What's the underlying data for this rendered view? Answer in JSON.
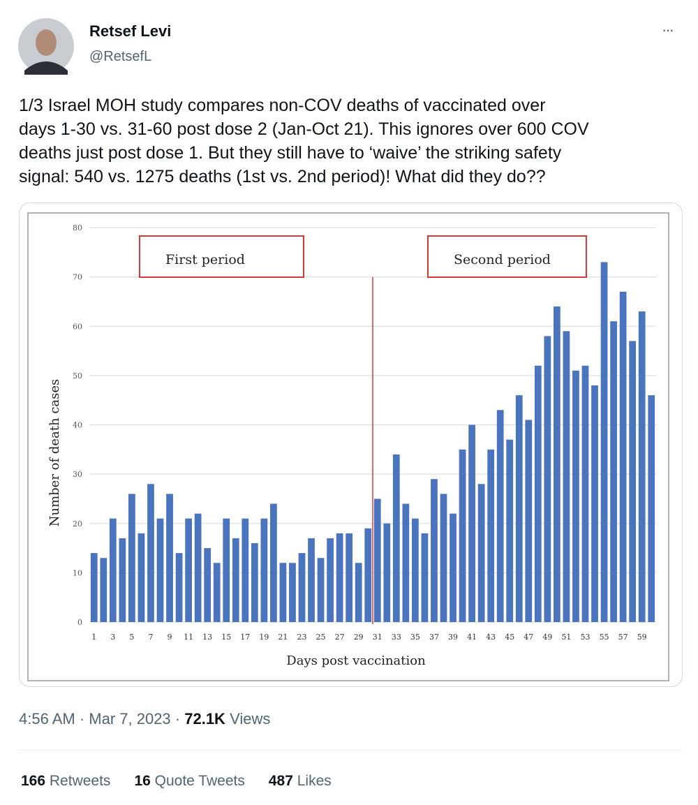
{
  "tweet": {
    "name": "Retsef Levi",
    "handle": "@RetsefL",
    "menu": "···",
    "text_lines": [
      "1/3 Israel MOH study compares non-COV deaths of vaccinated over",
      "days 1-30 vs. 31-60 post dose 2 (Jan-Oct 21). This ignores over 600 COV",
      "deaths just post dose 1. But they still have to ‘waive’ the striking safety",
      "signal: 540 vs. 1275 deaths (1st vs. 2nd period)! What did they do??"
    ],
    "timestamp": "4:56 AM · Mar 7, 2023 ·",
    "views_count": "72.1K",
    "views_label": "Views",
    "stats": [
      {
        "count": "166",
        "label": "Retweets"
      },
      {
        "count": "16",
        "label": "Quote Tweets"
      },
      {
        "count": "487",
        "label": "Likes"
      }
    ]
  },
  "chart_data": {
    "type": "bar",
    "x_label": "Days post vaccination",
    "y_label": "Number of death cases",
    "annotations": [
      "First period",
      "Second period"
    ],
    "categories": [
      1,
      null,
      3,
      null,
      5,
      null,
      7,
      null,
      9,
      null,
      11,
      null,
      13,
      null,
      15,
      null,
      17,
      null,
      19,
      null,
      21,
      null,
      23,
      null,
      25,
      null,
      27,
      null,
      29,
      null,
      31,
      null,
      33,
      null,
      35,
      null,
      37,
      null,
      39,
      null,
      41,
      null,
      43,
      null,
      45,
      null,
      47,
      null,
      49,
      null,
      51,
      null,
      53,
      null,
      55,
      null,
      57,
      null,
      59,
      null
    ],
    "values": [
      14,
      13,
      21,
      17,
      26,
      18,
      28,
      21,
      26,
      14,
      21,
      22,
      15,
      12,
      21,
      17,
      21,
      16,
      21,
      24,
      12,
      12,
      14,
      17,
      13,
      17,
      18,
      18,
      12,
      19,
      25,
      20,
      34,
      24,
      21,
      18,
      29,
      26,
      22,
      35,
      40,
      28,
      35,
      43,
      37,
      46,
      41,
      52,
      58,
      64,
      59,
      51,
      52,
      48,
      73,
      61,
      67,
      57,
      63,
      46
    ],
    "color": "#4a74bd",
    "ylim": [
      0,
      80
    ],
    "yticks": [
      0,
      10,
      20,
      30,
      40,
      50,
      60,
      70,
      80
    ],
    "grid": true
  }
}
